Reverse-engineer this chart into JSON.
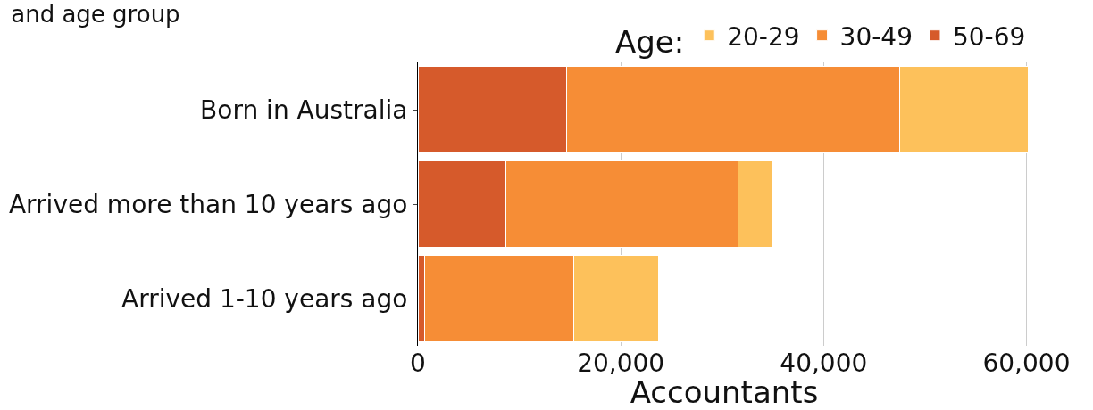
{
  "chart_data": {
    "type": "bar",
    "orientation": "horizontal",
    "stacked": true,
    "title": "and age group",
    "xlabel": "Accountants",
    "legend_title": "Age:",
    "categories": [
      "Born in Australia",
      "Arrived more than 10 years ago",
      "Arrived 1-10 years ago"
    ],
    "series": [
      {
        "name": "50-69",
        "color": "#d65a2b",
        "values": [
          14700,
          8700,
          700
        ]
      },
      {
        "name": "30-49",
        "color": "#f68d36",
        "values": [
          32800,
          22900,
          14700
        ]
      },
      {
        "name": "20-29",
        "color": "#fdc15b",
        "values": [
          12700,
          3300,
          8300
        ]
      }
    ],
    "xlim": [
      0,
      60400
    ],
    "xticks": [
      0,
      {
        "value": 20000,
        "label": "20,000"
      },
      {
        "value": 40000,
        "label": "40,000"
      },
      {
        "value": 60000,
        "label": "60,000"
      }
    ],
    "grid": "x",
    "legend": "top right"
  }
}
